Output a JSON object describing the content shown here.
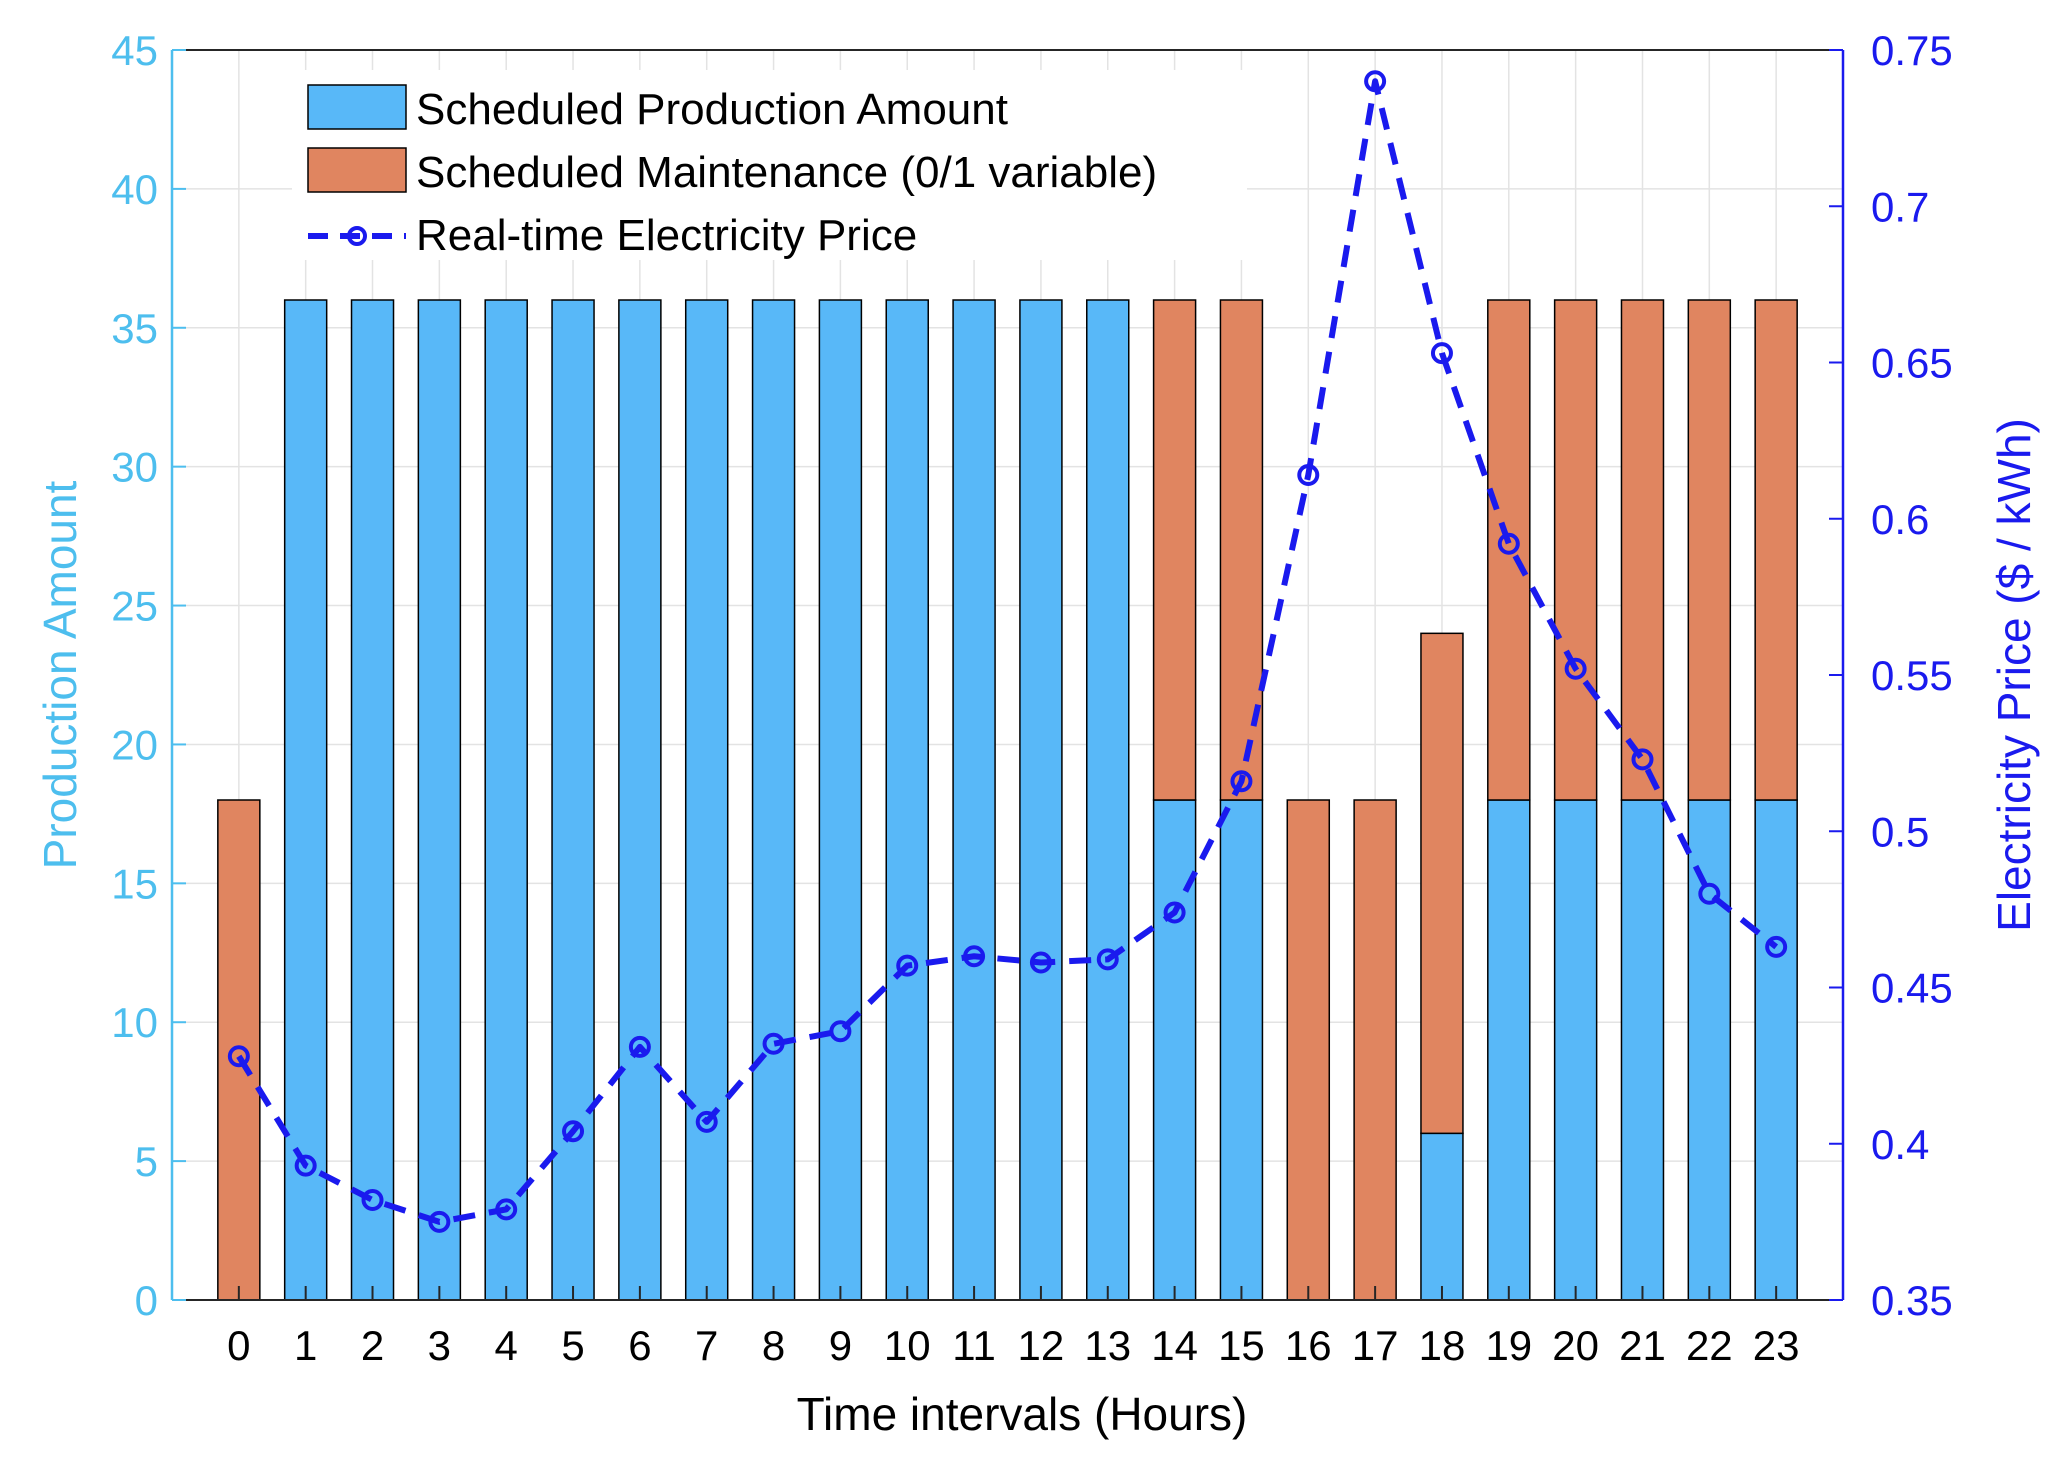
{
  "chart_data": {
    "type": "bar",
    "title": "",
    "xlabel": "Time intervals (Hours)",
    "ylabel_left": "Production Amount",
    "ylabel_right": "Electricity Price ($ / kWh)",
    "categories": [
      "0",
      "1",
      "2",
      "3",
      "4",
      "5",
      "6",
      "7",
      "8",
      "9",
      "10",
      "11",
      "12",
      "13",
      "14",
      "15",
      "16",
      "17",
      "18",
      "19",
      "20",
      "21",
      "22",
      "23"
    ],
    "ylim_left": [
      0,
      45
    ],
    "yticks_left": [
      0,
      5,
      10,
      15,
      20,
      25,
      30,
      35,
      40,
      45
    ],
    "ytick_labels_left": [
      "0",
      "5",
      "10",
      "15",
      "20",
      "25",
      "30",
      "35",
      "40",
      "45"
    ],
    "ylim_right": [
      0.35,
      0.75
    ],
    "yticks_right": [
      0.35,
      0.4,
      0.45,
      0.5,
      0.55,
      0.6,
      0.65,
      0.7,
      0.75
    ],
    "ytick_labels_right": [
      "0.35",
      "0.4",
      "0.45",
      "0.5",
      "0.55",
      "0.6",
      "0.65",
      "0.7",
      "0.75"
    ],
    "grid": true,
    "legend_position": "top-left",
    "series": [
      {
        "name": "Scheduled Production Amount",
        "kind": "bar-stacked",
        "axis": "left",
        "color": "#58b8f8",
        "values": [
          0,
          36,
          36,
          36,
          36,
          36,
          36,
          36,
          36,
          36,
          36,
          36,
          36,
          36,
          18,
          18,
          0,
          0,
          6,
          18,
          18,
          18,
          18,
          18
        ]
      },
      {
        "name": "Scheduled Maintenance (0/1 variable)",
        "kind": "bar-stacked",
        "axis": "left",
        "color": "#e08560",
        "values": [
          18,
          0,
          0,
          0,
          0,
          0,
          0,
          0,
          0,
          0,
          0,
          0,
          0,
          0,
          18,
          18,
          18,
          18,
          18,
          18,
          18,
          18,
          18,
          18
        ]
      },
      {
        "name": "Real-time Electricity Price",
        "kind": "line",
        "axis": "right",
        "color": "#1a1aee",
        "values": [
          0.428,
          0.393,
          0.382,
          0.375,
          0.379,
          0.404,
          0.431,
          0.407,
          0.432,
          0.436,
          0.457,
          0.46,
          0.458,
          0.459,
          0.474,
          0.516,
          0.614,
          0.74,
          0.653,
          0.592,
          0.552,
          0.523,
          0.48,
          0.463
        ]
      }
    ],
    "colors": {
      "left_axis": "#4dbeee",
      "right_axis": "#1a1aee",
      "grid": "#e3e3e3",
      "frame": "#262626"
    }
  }
}
